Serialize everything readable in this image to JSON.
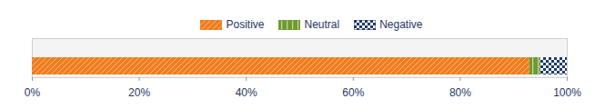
{
  "chart_data": {
    "type": "bar",
    "orientation": "horizontal",
    "stacked": true,
    "categories": [
      null
    ],
    "series": [
      {
        "name": "Positive",
        "color": "#f07d1e",
        "values": [
          93
        ]
      },
      {
        "name": "Neutral",
        "color": "#6f9a2e",
        "values": [
          2
        ]
      },
      {
        "name": "Negative",
        "color": "#1f3a6b",
        "values": [
          5
        ]
      }
    ],
    "xlim": [
      0,
      100
    ],
    "xticks": [
      {
        "value": 0,
        "label": "0%"
      },
      {
        "value": 20,
        "label": "20%"
      },
      {
        "value": 40,
        "label": "40%"
      },
      {
        "value": 60,
        "label": "60%"
      },
      {
        "value": 80,
        "label": "80%"
      },
      {
        "value": 100,
        "label": "100%"
      }
    ],
    "grid": false,
    "legend": "top",
    "tick_labels": "x"
  }
}
